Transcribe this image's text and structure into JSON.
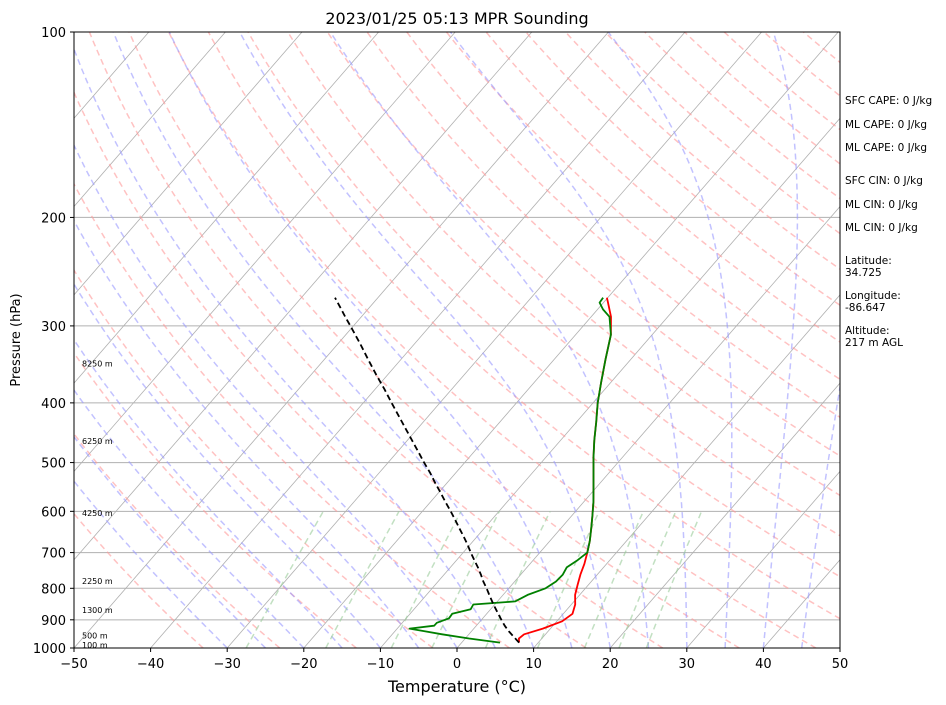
{
  "chart_data": {
    "type": "line",
    "title": "2023/01/25 05:13 MPR Sounding",
    "xlabel": "Temperature (°C)",
    "ylabel": "Pressure (hPa)",
    "xlim": [
      -50,
      50
    ],
    "ylim": [
      1000,
      100
    ],
    "y_scale": "log",
    "x_ticks": [
      -50,
      -40,
      -30,
      -20,
      -10,
      0,
      10,
      20,
      30,
      40,
      50
    ],
    "y_ticks": [
      1000,
      900,
      800,
      700,
      600,
      500,
      400,
      300,
      200,
      100
    ],
    "x_tick_labels": [
      "−50",
      "−40",
      "−30",
      "−20",
      "−10",
      "0",
      "10",
      "20",
      "30",
      "40",
      "50"
    ],
    "y_tick_labels": [
      "1000",
      "900",
      "800",
      "700",
      "600",
      "500",
      "400",
      "300",
      "200",
      "100"
    ],
    "grid": true,
    "series": [
      {
        "color": "#ff0000",
        "style": "solid",
        "pressure": [
          980,
          965,
          950,
          930,
          905,
          880,
          850,
          820,
          790,
          760,
          730,
          700,
          670,
          640,
          610,
          580,
          550,
          520,
          490,
          460,
          430,
          400,
          370,
          340,
          310,
          290,
          275,
          270
        ],
        "temperature": [
          7.5,
          7.0,
          7.2,
          9.0,
          10.7,
          11.2,
          10.5,
          9.4,
          8.6,
          7.8,
          7.1,
          6.2,
          5.2,
          4.0,
          2.7,
          1.3,
          -0.3,
          -2.0,
          -3.8,
          -5.6,
          -7.4,
          -9.4,
          -11.3,
          -13.3,
          -15.4,
          -17.4,
          -19.4,
          -20.1
        ]
      },
      {
        "color": "#008000",
        "style": "solid",
        "pressure": [
          980,
          965,
          950,
          940,
          930,
          920,
          910,
          895,
          880,
          865,
          850,
          840,
          820,
          800,
          780,
          760,
          740,
          720,
          700,
          670,
          640,
          610,
          580,
          550,
          520,
          490,
          460,
          430,
          400,
          370,
          340,
          310,
          290,
          282,
          275,
          270
        ],
        "temperature": [
          5.0,
          0.5,
          -3.5,
          -6.0,
          -8.4,
          -5.5,
          -5.5,
          -4.4,
          -4.5,
          -2.6,
          -2.8,
          2.3,
          3.2,
          4.8,
          5.4,
          5.5,
          5.2,
          5.8,
          6.2,
          5.2,
          4.0,
          2.7,
          1.3,
          -0.3,
          -2.0,
          -3.8,
          -5.6,
          -7.4,
          -9.4,
          -11.3,
          -13.3,
          -15.4,
          -17.6,
          -19.3,
          -20.5,
          -20.6
        ]
      },
      {
        "color": "#000000",
        "style": "dashed",
        "pressure": [
          980,
          960,
          940,
          920,
          900,
          880,
          860,
          840,
          820,
          800,
          780,
          760,
          740,
          720,
          700,
          680,
          660,
          640,
          620,
          600,
          580,
          560,
          540,
          520,
          500,
          480,
          460,
          440,
          420,
          400,
          380,
          360,
          340,
          320,
          300,
          290,
          280,
          270
        ],
        "temperature": [
          7.5,
          6.2,
          4.9,
          3.7,
          2.6,
          1.5,
          0.4,
          -0.7,
          -1.8,
          -2.9,
          -4.1,
          -5.2,
          -6.4,
          -7.7,
          -9.0,
          -10.3,
          -11.7,
          -13.2,
          -14.7,
          -16.3,
          -18.0,
          -19.7,
          -21.5,
          -23.3,
          -25.3,
          -27.3,
          -29.4,
          -31.6,
          -33.9,
          -36.3,
          -38.8,
          -41.5,
          -44.3,
          -47.2,
          -50.4,
          -52.1,
          -53.8,
          -55.6
        ]
      }
    ],
    "height_labels": [
      {
        "label": "100 m",
        "pressure": 988
      },
      {
        "label": "500 m",
        "pressure": 955
      },
      {
        "label": "1300 m",
        "pressure": 868
      },
      {
        "label": "2250 m",
        "pressure": 779
      },
      {
        "label": "4250 m",
        "pressure": 604
      },
      {
        "label": "6250 m",
        "pressure": 461
      },
      {
        "label": "8250 m",
        "pressure": 345
      }
    ]
  },
  "info": {
    "sfc_cape": "SFC CAPE: 0 J/kg",
    "ml_cape_1": "ML CAPE: 0 J/kg",
    "ml_cape_2": "ML CAPE: 0 J/kg",
    "sfc_cin": "SFC CIN: 0 J/kg",
    "ml_cin_1": "ML CIN: 0 J/kg",
    "ml_cin_2": "ML CIN: 0 J/kg",
    "latitude_label": "Latitude:",
    "latitude_value": "34.725",
    "longitude_label": "Longitude:",
    "longitude_value": "-86.647",
    "altitude_label": "Altitude:",
    "altitude_value": "217 m AGL"
  },
  "colors": {
    "dry_adiabat": "#ff9999",
    "moist_adiabat": "#9999ff",
    "mixing_ratio": "#99cc99",
    "isotherm": "#b0b0b0",
    "isobar": "#b0b0b0",
    "frame": "#000000"
  }
}
